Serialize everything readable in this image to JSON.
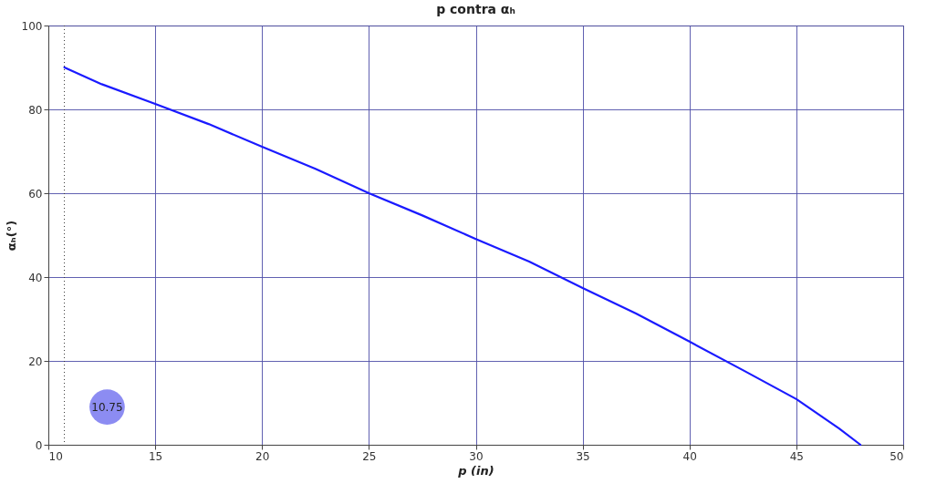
{
  "chart_data": {
    "type": "line",
    "title": "p contra αₕ",
    "xlabel": "p (in)",
    "ylabel": "αₕ(°)",
    "x": [
      10.75,
      12.5,
      15,
      17.5,
      20,
      22.5,
      25,
      27.5,
      30,
      32.5,
      35,
      37.5,
      40,
      42.5,
      45,
      47,
      48
    ],
    "series": [
      {
        "color": "#1a1aff",
        "values": [
          90,
          86,
          81.3,
          76.5,
          71.1,
          65.8,
          60,
          54.7,
          49.1,
          43.7,
          37.4,
          31.3,
          24.6,
          17.8,
          10.9,
          3.9,
          0
        ]
      }
    ],
    "xlim": [
      10,
      50
    ],
    "xticks": [
      10,
      15,
      20,
      25,
      30,
      35,
      40,
      45,
      50
    ],
    "ylim": [
      0,
      100
    ],
    "yticks": [
      0,
      20,
      40,
      60,
      80,
      100
    ],
    "grid": true,
    "marker": "none",
    "line_style": "solid",
    "ref_lines": [
      {
        "axis": "x",
        "value": 10.75,
        "label": "10.75",
        "line_style": "dotted",
        "color": "#333333"
      }
    ]
  }
}
